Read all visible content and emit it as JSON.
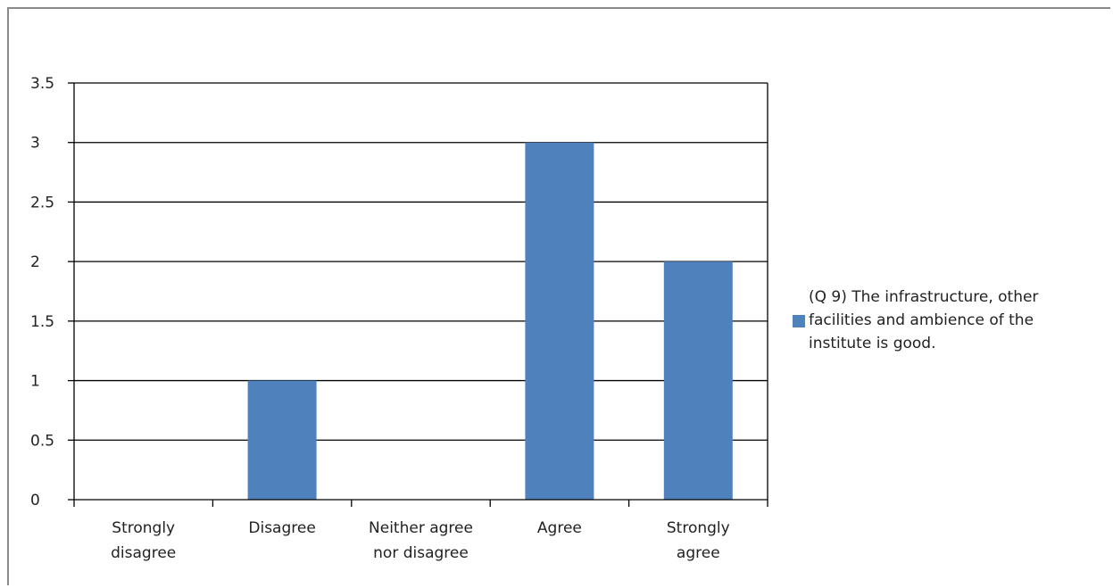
{
  "chart_data": {
    "type": "bar",
    "categories": [
      "Strongly\ndisagree",
      "Disagree",
      "Neither agree\nnor disagree",
      "Agree",
      "Strongly\nagree"
    ],
    "series": [
      {
        "name": "(Q 9) The infrastructure, other\nfacilities and ambience of the\ninstitute is good.",
        "values": [
          0,
          1,
          0,
          3,
          2
        ],
        "color": "#4f81bd"
      }
    ],
    "yticks": [
      "0",
      "0.5",
      "1",
      "1.5",
      "2",
      "2.5",
      "3",
      "3.5"
    ],
    "ylim": [
      0,
      3.5
    ],
    "grid": true,
    "legend_position": "right"
  }
}
